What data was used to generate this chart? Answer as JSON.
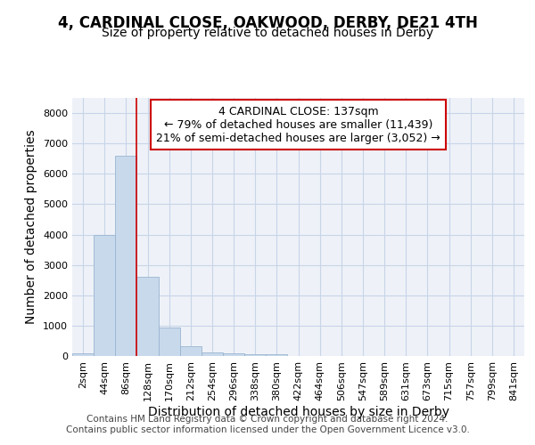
{
  "title": "4, CARDINAL CLOSE, OAKWOOD, DERBY, DE21 4TH",
  "subtitle": "Size of property relative to detached houses in Derby",
  "xlabel": "Distribution of detached houses by size in Derby",
  "ylabel": "Number of detached properties",
  "bin_labels": [
    "2sqm",
    "44sqm",
    "86sqm",
    "128sqm",
    "170sqm",
    "212sqm",
    "254sqm",
    "296sqm",
    "338sqm",
    "380sqm",
    "422sqm",
    "464sqm",
    "506sqm",
    "547sqm",
    "589sqm",
    "631sqm",
    "673sqm",
    "715sqm",
    "757sqm",
    "799sqm",
    "841sqm"
  ],
  "bar_heights": [
    75,
    4000,
    6600,
    2600,
    950,
    320,
    130,
    75,
    60,
    60,
    0,
    0,
    0,
    0,
    0,
    0,
    0,
    0,
    0,
    0,
    0
  ],
  "bar_color": "#c8d9ec",
  "bar_edge_color": "#9ab5d0",
  "grid_color": "#c8d4e8",
  "vline_x": 2.5,
  "vline_color": "#cc0000",
  "annotation_text": "4 CARDINAL CLOSE: 137sqm\n← 79% of detached houses are smaller (11,439)\n21% of semi-detached houses are larger (3,052) →",
  "annotation_box_color": "#ffffff",
  "annotation_box_edge": "#cc0000",
  "ylim": [
    0,
    8500
  ],
  "yticks": [
    0,
    1000,
    2000,
    3000,
    4000,
    5000,
    6000,
    7000,
    8000
  ],
  "footer": "Contains HM Land Registry data © Crown copyright and database right 2024.\nContains public sector information licensed under the Open Government Licence v3.0.",
  "background_color": "#eef2f8",
  "fig_background": "#ffffff",
  "title_fontsize": 12,
  "subtitle_fontsize": 10,
  "tick_fontsize": 8,
  "label_fontsize": 10,
  "annotation_fontsize": 9,
  "footer_fontsize": 7.5
}
